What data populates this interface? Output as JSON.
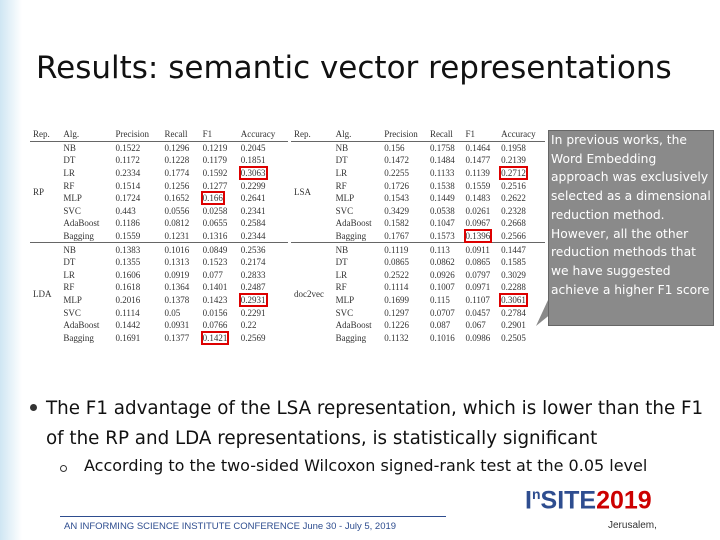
{
  "title": "Results: semantic vector representations",
  "tables": [
    {
      "columns": [
        "Rep.",
        "Alg.",
        "Precision",
        "Recall",
        "F1",
        "Accuracy"
      ],
      "groups": [
        {
          "rep": "RP",
          "rows": [
            [
              "NB",
              0.1522,
              0.1296,
              0.1219,
              0.2045
            ],
            [
              "DT",
              0.1172,
              0.1228,
              0.1179,
              0.1851
            ],
            [
              "LR",
              0.2334,
              0.1774,
              0.1592,
              0.3063
            ],
            [
              "RF",
              0.1514,
              0.1256,
              0.1277,
              0.2299
            ],
            [
              "MLP",
              0.1724,
              0.1652,
              0.166,
              0.2641
            ],
            [
              "SVC",
              0.443,
              0.0556,
              0.0258,
              0.2341
            ],
            [
              "AdaBoost",
              0.1186,
              0.0812,
              0.0655,
              0.2584
            ],
            [
              "Bagging",
              0.1559,
              0.1231,
              0.1316,
              0.2344
            ]
          ]
        },
        {
          "rep": "LDA",
          "rows": [
            [
              "NB",
              0.1383,
              0.1016,
              0.0849,
              0.2536
            ],
            [
              "DT",
              0.1355,
              0.1313,
              0.1523,
              0.2174
            ],
            [
              "LR",
              0.1606,
              0.0919,
              0.077,
              0.2833
            ],
            [
              "RF",
              0.1618,
              0.1364,
              0.1401,
              0.2487
            ],
            [
              "MLP",
              0.2016,
              0.1378,
              0.1423,
              0.2931
            ],
            [
              "SVC",
              0.1114,
              0.05,
              0.0156,
              0.2291
            ],
            [
              "AdaBoost",
              0.1442,
              0.0931,
              0.0766,
              0.22
            ],
            [
              "Bagging",
              0.1691,
              0.1377,
              0.1421,
              0.2569
            ]
          ]
        }
      ]
    },
    {
      "columns": [
        "Rep.",
        "Alg.",
        "Precision",
        "Recall",
        "F1",
        "Accuracy"
      ],
      "groups": [
        {
          "rep": "LSA",
          "rows": [
            [
              "NB",
              0.156,
              0.1758,
              0.1464,
              0.1958
            ],
            [
              "DT",
              0.1472,
              0.1484,
              0.1477,
              0.2139
            ],
            [
              "LR",
              0.2255,
              0.1133,
              0.1139,
              0.2712
            ],
            [
              "RF",
              0.1726,
              0.1538,
              0.1559,
              0.2516
            ],
            [
              "MLP",
              0.1543,
              0.1449,
              0.1483,
              0.2622
            ],
            [
              "SVC",
              0.3429,
              0.0538,
              0.0261,
              0.2328
            ],
            [
              "AdaBoost",
              0.1582,
              0.1047,
              0.0967,
              0.2668
            ],
            [
              "Bagging",
              0.1767,
              0.1573,
              0.1396,
              0.2566
            ]
          ]
        },
        {
          "rep": "doc2vec",
          "rows": [
            [
              "NB",
              0.1119,
              0.113,
              0.0911,
              0.1447
            ],
            [
              "DT",
              0.0865,
              0.0862,
              0.0865,
              0.1585
            ],
            [
              "LR",
              0.2522,
              0.0926,
              0.0797,
              0.3029
            ],
            [
              "RF",
              0.1114,
              0.1007,
              0.0971,
              0.2288
            ],
            [
              "MLP",
              0.1699,
              0.115,
              0.1107,
              0.3061
            ],
            [
              "SVC",
              0.1297,
              0.0707,
              0.0457,
              0.2784
            ],
            [
              "AdaBoost",
              0.1226,
              0.087,
              0.067,
              0.2901
            ],
            [
              "Bagging",
              0.1132,
              0.1016,
              0.0986,
              0.2505
            ]
          ]
        }
      ]
    }
  ],
  "callout": [
    "In previous works, the Word Embedding approach was exclusively selected as a dimensional reduction method.",
    "However, all the other reduction methods that we have suggested achieve a higher F1 score"
  ],
  "bullet": "The F1 advantage of the LSA representation, which is lower than the F1 of the RP and LDA representations, is statistically significant",
  "sub_bullet": "According to the two-sided Wilcoxon signed-rank test at the 0.05 level",
  "logo": {
    "prefix": "I",
    "sup": "n",
    "name": "SITE",
    "year": "2019"
  },
  "footer": "AN INFORMING SCIENCE INSTITUTE CONFERENCE June 30 - July 5, 2019",
  "location": "Jerusalem,"
}
